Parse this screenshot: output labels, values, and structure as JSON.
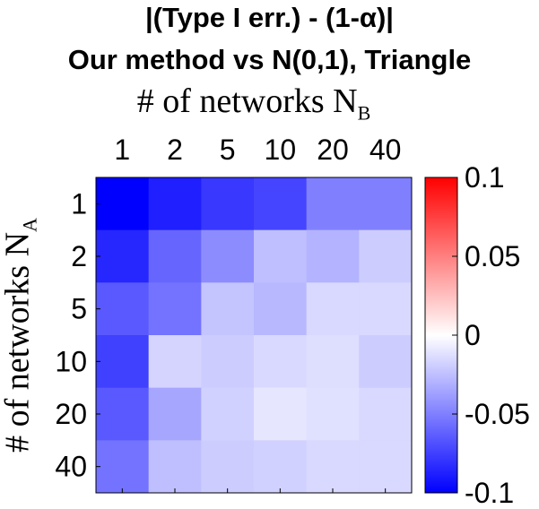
{
  "chart_data": {
    "type": "heatmap",
    "title": [
      "|(Type I err.) - (1-α)|",
      "Our method vs N(0,1), Triangle"
    ],
    "xlabel": {
      "text": "# of networks N",
      "sub": "B"
    },
    "ylabel": {
      "text": "# of networks N",
      "sub": "A"
    },
    "x_categories": [
      "1",
      "2",
      "5",
      "10",
      "20",
      "40"
    ],
    "y_categories": [
      "1",
      "2",
      "5",
      "10",
      "20",
      "40"
    ],
    "values": [
      [
        -0.1,
        -0.088,
        -0.078,
        -0.073,
        -0.05,
        -0.05
      ],
      [
        -0.085,
        -0.06,
        -0.045,
        -0.025,
        -0.03,
        -0.02
      ],
      [
        -0.065,
        -0.055,
        -0.023,
        -0.028,
        -0.015,
        -0.015
      ],
      [
        -0.075,
        -0.017,
        -0.02,
        -0.015,
        -0.013,
        -0.02
      ],
      [
        -0.065,
        -0.035,
        -0.018,
        -0.01,
        -0.012,
        -0.015
      ],
      [
        -0.055,
        -0.025,
        -0.02,
        -0.018,
        -0.015,
        -0.015
      ]
    ],
    "colorbar": {
      "range": [
        -0.1,
        0.1
      ],
      "ticks": [
        "-0.1",
        "-0.05",
        "0",
        "0.05",
        "0.1"
      ],
      "tick_values": [
        -0.1,
        -0.05,
        0,
        0.05,
        0.1
      ],
      "colormap": [
        "#0000ff",
        "#ffffff",
        "#ff0000"
      ]
    }
  }
}
